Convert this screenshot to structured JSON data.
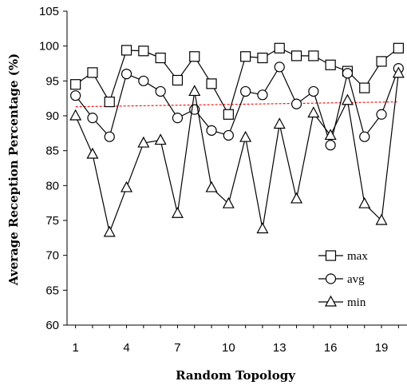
{
  "chart_data": {
    "type": "line",
    "title": "",
    "xlabel": "Random Topology",
    "ylabel": "Average Reception Percentage (%)",
    "x": [
      1,
      2,
      3,
      4,
      5,
      6,
      7,
      8,
      9,
      10,
      11,
      12,
      13,
      14,
      15,
      16,
      17,
      18,
      19,
      20
    ],
    "xticks": [
      1,
      4,
      7,
      10,
      13,
      16,
      19
    ],
    "ylim": [
      60,
      105
    ],
    "yticks": [
      60,
      65,
      70,
      75,
      80,
      85,
      90,
      95,
      100,
      105
    ],
    "grid": false,
    "legend_position": "bottom-right",
    "series": [
      {
        "name": "max",
        "marker": "square",
        "values": [
          94.5,
          96.2,
          92.0,
          99.4,
          99.3,
          98.3,
          95.1,
          98.5,
          94.6,
          90.2,
          98.5,
          98.3,
          99.7,
          98.6,
          98.6,
          97.3,
          96.4,
          94.0,
          97.8,
          99.7
        ]
      },
      {
        "name": "avg",
        "marker": "circle",
        "values": [
          92.9,
          89.7,
          87.0,
          96.0,
          95.0,
          93.5,
          89.7,
          90.9,
          87.9,
          87.2,
          93.5,
          93.0,
          97.0,
          91.7,
          93.5,
          85.8,
          96.1,
          87.0,
          90.2,
          96.8
        ]
      },
      {
        "name": "min",
        "marker": "triangle",
        "values": [
          90.0,
          84.5,
          73.3,
          79.7,
          86.1,
          86.5,
          76.0,
          93.5,
          79.7,
          77.4,
          86.9,
          73.8,
          88.8,
          78.1,
          90.4,
          87.2,
          92.2,
          77.4,
          75.0,
          96.1
        ]
      }
    ],
    "trendline": {
      "color": "#ff0000",
      "style": "dotted",
      "start": 91.3,
      "end": 92.0
    }
  }
}
